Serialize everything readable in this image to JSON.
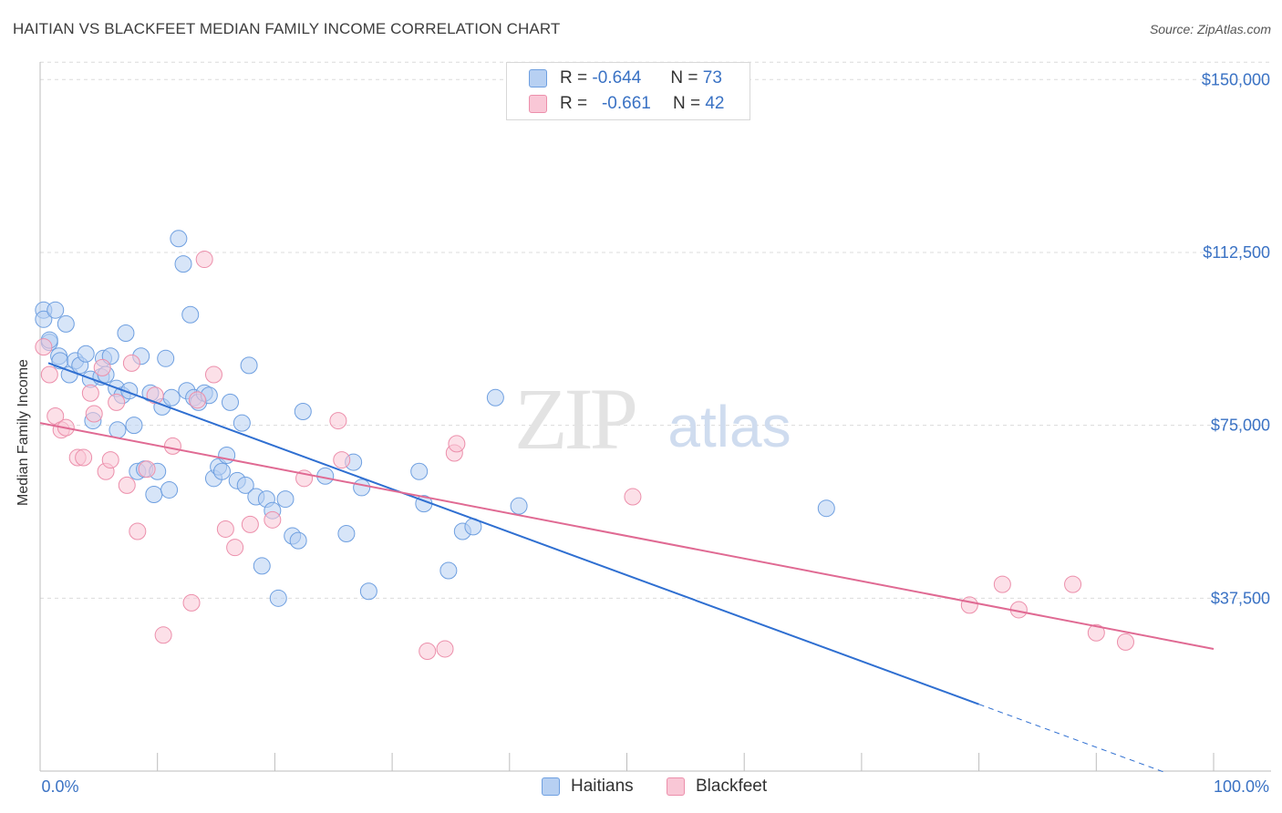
{
  "title": "HAITIAN VS BLACKFEET MEDIAN FAMILY INCOME CORRELATION CHART",
  "source": "Source: ZipAtlas.com",
  "watermark": {
    "zip": "ZIP",
    "atlas": "atlas"
  },
  "legend": {
    "r_label": "R =",
    "n_label": "N =",
    "rows": [
      {
        "r": "-0.644",
        "n": "73"
      },
      {
        "r": "-0.661",
        "n": "42"
      }
    ]
  },
  "colors": {
    "haitians_fill": "#b7d0f2",
    "haitians_stroke": "#6e9fe0",
    "haitians_line": "#2f6fd1",
    "blackfeet_fill": "#f9c7d6",
    "blackfeet_stroke": "#ec8fab",
    "blackfeet_line": "#e06a93",
    "tick_label": "#3a72c4",
    "grid": "#dcdcdc"
  },
  "chart_data": {
    "type": "scatter",
    "title": "HAITIAN VS BLACKFEET MEDIAN FAMILY INCOME CORRELATION CHART",
    "xlabel": "",
    "ylabel": "Median Family Income",
    "xlim": [
      0,
      100
    ],
    "ylim": [
      0,
      155000
    ],
    "x_tick_labels": [
      "0.0%",
      "100.0%"
    ],
    "y_ticks": [
      37500,
      75000,
      112500,
      150000
    ],
    "y_tick_labels": [
      "$37,500",
      "$75,000",
      "$112,500",
      "$150,000"
    ],
    "grid": true,
    "legend_position": "top-center",
    "series": [
      {
        "name": "Haitians",
        "points": [
          [
            0.3,
            100000
          ],
          [
            0.3,
            98000
          ],
          [
            0.8,
            93000
          ],
          [
            1.3,
            100000
          ],
          [
            1.6,
            90000
          ],
          [
            1.7,
            89000
          ],
          [
            2.2,
            97000
          ],
          [
            2.5,
            86000
          ],
          [
            3.0,
            89000
          ],
          [
            3.4,
            88000
          ],
          [
            3.9,
            90500
          ],
          [
            4.3,
            85000
          ],
          [
            4.5,
            76000
          ],
          [
            5.2,
            85500
          ],
          [
            5.4,
            89500
          ],
          [
            5.6,
            86000
          ],
          [
            6.0,
            90000
          ],
          [
            6.5,
            83000
          ],
          [
            6.6,
            74000
          ],
          [
            7.0,
            81500
          ],
          [
            7.3,
            95000
          ],
          [
            7.6,
            82500
          ],
          [
            8.0,
            75000
          ],
          [
            8.3,
            65000
          ],
          [
            8.6,
            90000
          ],
          [
            8.9,
            65500
          ],
          [
            9.4,
            82000
          ],
          [
            9.7,
            60000
          ],
          [
            10.0,
            65000
          ],
          [
            10.4,
            79000
          ],
          [
            10.7,
            89500
          ],
          [
            11.0,
            61000
          ],
          [
            11.2,
            81000
          ],
          [
            11.8,
            115500
          ],
          [
            12.2,
            110000
          ],
          [
            12.5,
            82500
          ],
          [
            12.8,
            99000
          ],
          [
            13.1,
            81000
          ],
          [
            13.5,
            80000
          ],
          [
            14.0,
            82000
          ],
          [
            14.4,
            81500
          ],
          [
            14.8,
            63500
          ],
          [
            15.2,
            66000
          ],
          [
            15.5,
            65000
          ],
          [
            15.9,
            68500
          ],
          [
            16.2,
            80000
          ],
          [
            16.8,
            63000
          ],
          [
            17.2,
            75500
          ],
          [
            17.5,
            62000
          ],
          [
            17.8,
            88000
          ],
          [
            18.4,
            59500
          ],
          [
            18.9,
            44500
          ],
          [
            19.3,
            59000
          ],
          [
            19.8,
            56500
          ],
          [
            20.3,
            37500
          ],
          [
            20.9,
            59000
          ],
          [
            21.5,
            51000
          ],
          [
            22.0,
            50000
          ],
          [
            22.4,
            78000
          ],
          [
            24.3,
            64000
          ],
          [
            26.1,
            51500
          ],
          [
            26.7,
            67000
          ],
          [
            27.4,
            61500
          ],
          [
            28.0,
            39000
          ],
          [
            32.3,
            65000
          ],
          [
            32.7,
            58000
          ],
          [
            34.8,
            43500
          ],
          [
            36.0,
            52000
          ],
          [
            36.9,
            53000
          ],
          [
            38.8,
            81000
          ],
          [
            40.8,
            57500
          ],
          [
            67.0,
            57000
          ],
          [
            0.8,
            93500
          ]
        ]
      },
      {
        "name": "Blackfeet",
        "points": [
          [
            0.3,
            92000
          ],
          [
            0.8,
            86000
          ],
          [
            1.3,
            77000
          ],
          [
            1.8,
            74000
          ],
          [
            2.2,
            74500
          ],
          [
            3.2,
            68000
          ],
          [
            3.7,
            68000
          ],
          [
            4.3,
            82000
          ],
          [
            4.6,
            77500
          ],
          [
            5.3,
            87500
          ],
          [
            5.6,
            65000
          ],
          [
            6.0,
            67500
          ],
          [
            6.5,
            80000
          ],
          [
            7.4,
            62000
          ],
          [
            7.8,
            88500
          ],
          [
            8.3,
            52000
          ],
          [
            9.1,
            65500
          ],
          [
            9.8,
            81500
          ],
          [
            10.5,
            29500
          ],
          [
            11.3,
            70500
          ],
          [
            12.9,
            36500
          ],
          [
            13.4,
            80500
          ],
          [
            14.0,
            111000
          ],
          [
            14.8,
            86000
          ],
          [
            15.8,
            52500
          ],
          [
            16.6,
            48500
          ],
          [
            17.9,
            53500
          ],
          [
            19.8,
            54500
          ],
          [
            22.5,
            63500
          ],
          [
            25.4,
            76000
          ],
          [
            25.7,
            67500
          ],
          [
            33.0,
            26000
          ],
          [
            34.5,
            26500
          ],
          [
            35.3,
            69000
          ],
          [
            35.5,
            71000
          ],
          [
            50.5,
            59500
          ],
          [
            79.2,
            36000
          ],
          [
            82.0,
            40500
          ],
          [
            83.4,
            35000
          ],
          [
            88.0,
            40500
          ],
          [
            90.0,
            30000
          ],
          [
            92.5,
            28000
          ]
        ]
      }
    ],
    "trend_lines": [
      {
        "series": "Haitians",
        "x0": 0.7,
        "y0": 88500,
        "x1": 80.0,
        "y1": 14500,
        "dashed_to_x": 96.0
      },
      {
        "series": "Blackfeet",
        "x0": 0.0,
        "y0": 75500,
        "x1": 100.0,
        "y1": 26500
      }
    ]
  },
  "bottom_legend": [
    {
      "label": "Haitians"
    },
    {
      "label": "Blackfeet"
    }
  ]
}
